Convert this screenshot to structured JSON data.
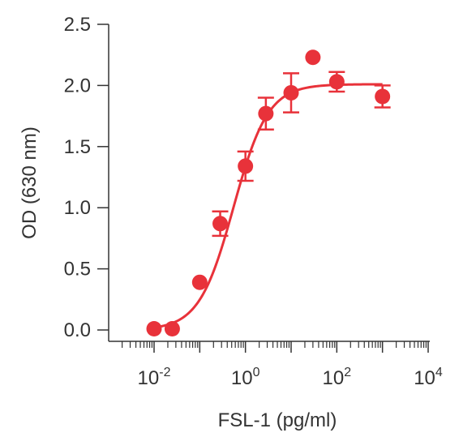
{
  "chart_data": {
    "type": "scatter",
    "title": "",
    "xlabel": "FSL-1 (pg/ml)",
    "ylabel": "OD (630 nm)",
    "x_scale": "log",
    "xlim": [
      0.01,
      10000
    ],
    "ylim": [
      0,
      2.5
    ],
    "x_ticks": [
      {
        "base": "10",
        "exp": "-2",
        "value": 0.01
      },
      {
        "base": "10",
        "exp": "0",
        "value": 1
      },
      {
        "base": "10",
        "exp": "2",
        "value": 100
      },
      {
        "base": "10",
        "exp": "4",
        "value": 10000
      }
    ],
    "y_ticks": [
      {
        "label": "0.0",
        "value": 0
      },
      {
        "label": "0.5",
        "value": 0.5
      },
      {
        "label": "1.0",
        "value": 1.0
      },
      {
        "label": "1.5",
        "value": 1.5
      },
      {
        "label": "2.0",
        "value": 2.0
      },
      {
        "label": "2.5",
        "value": 2.5
      }
    ],
    "grid": false,
    "color": "#e8323a",
    "series": [
      {
        "points": [
          {
            "x": 0.01,
            "y": 0.01,
            "err": 0
          },
          {
            "x": 0.025,
            "y": 0.01,
            "err": 0
          },
          {
            "x": 0.1,
            "y": 0.39,
            "err": 0
          },
          {
            "x": 0.28,
            "y": 0.87,
            "err": 0.1
          },
          {
            "x": 1.0,
            "y": 1.34,
            "err": 0.12
          },
          {
            "x": 2.8,
            "y": 1.77,
            "err": 0.13
          },
          {
            "x": 10,
            "y": 1.94,
            "err": 0.16
          },
          {
            "x": 30,
            "y": 2.23,
            "err": 0
          },
          {
            "x": 100,
            "y": 2.03,
            "err": 0.08
          },
          {
            "x": 1000,
            "y": 1.91,
            "err": 0.09
          }
        ],
        "fit_curve": {
          "model": "4PL",
          "bottom": 0.0,
          "top": 2.01,
          "ec50": 0.55,
          "hill": 1.15,
          "x_range": [
            0.01,
            1000
          ]
        }
      }
    ]
  }
}
